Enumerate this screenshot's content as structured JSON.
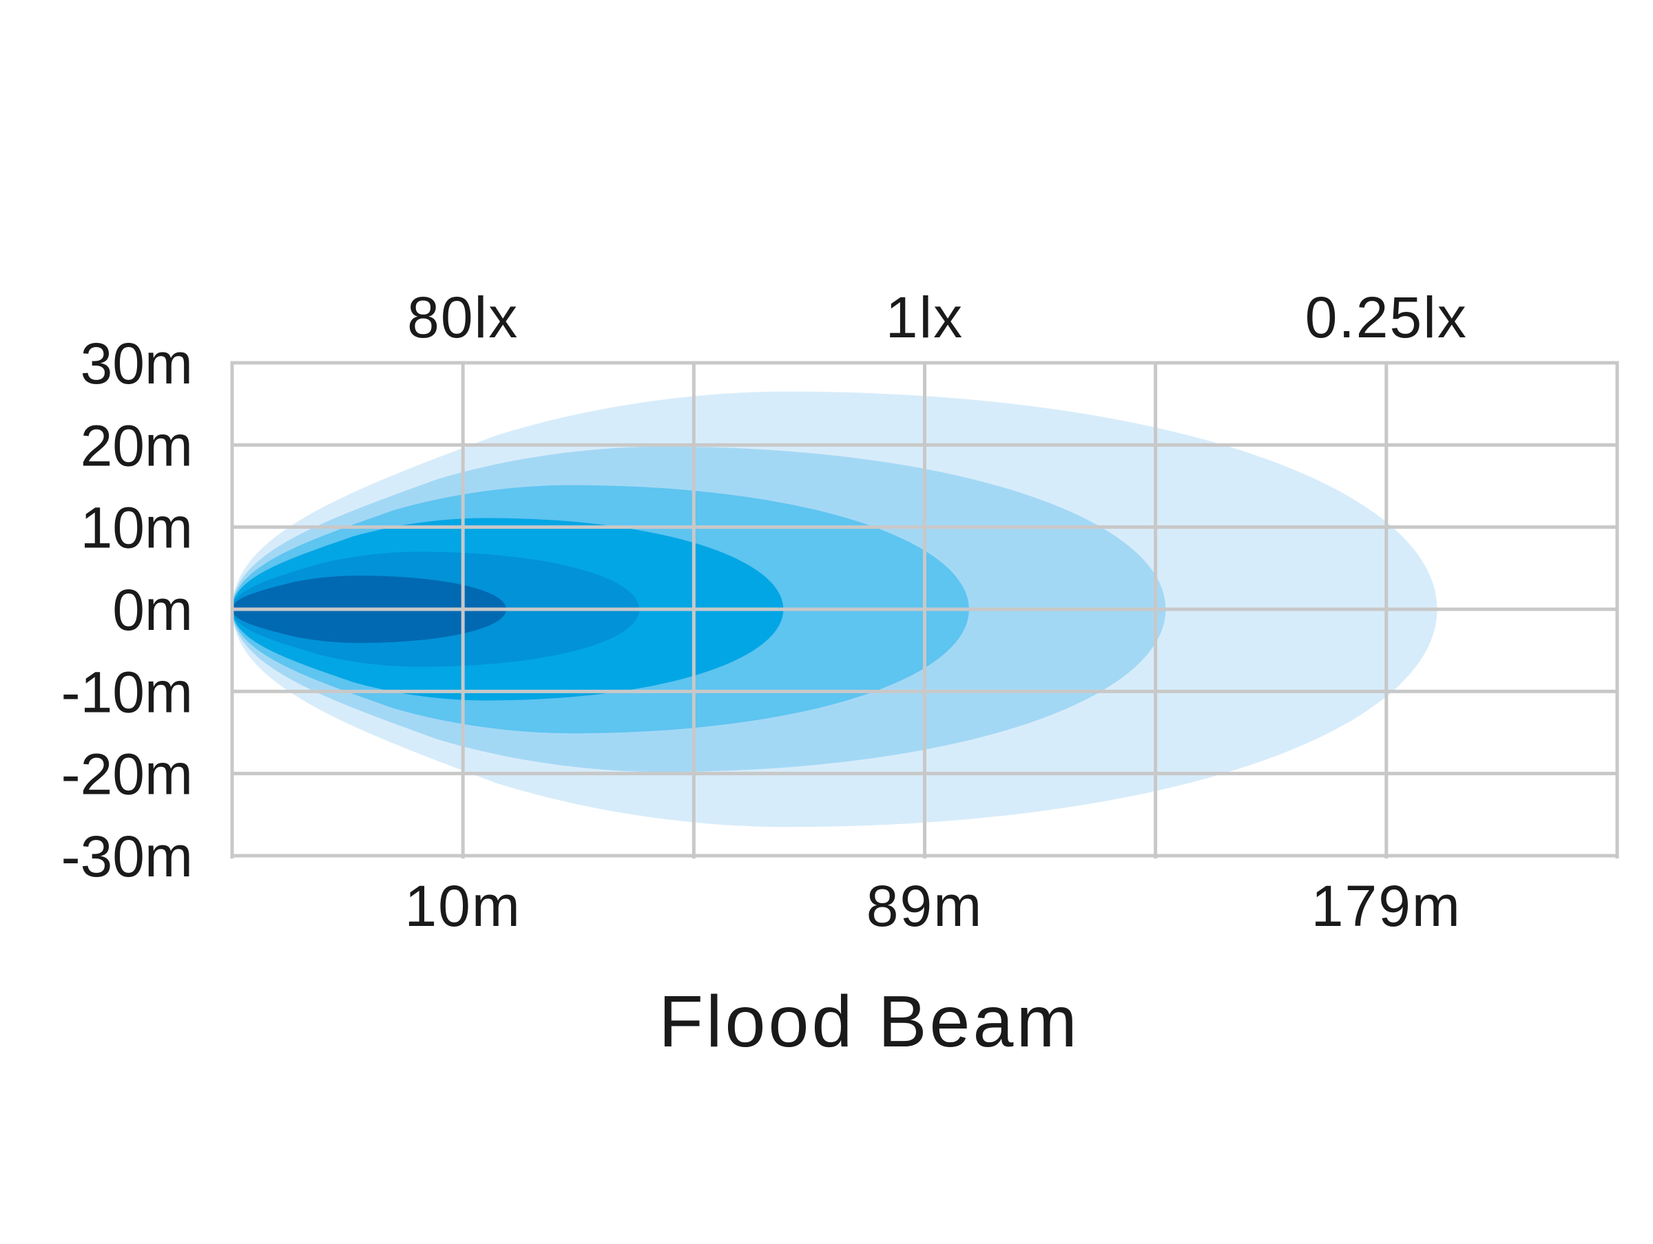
{
  "chart_data": {
    "type": "area",
    "title": "Flood Beam",
    "xlabel": "",
    "ylabel": "",
    "y_ticks": [
      "30m",
      "20m",
      "10m",
      "0m",
      "-10m",
      "-20m",
      "-30m"
    ],
    "y_tick_values": [
      30,
      20,
      10,
      0,
      -10,
      -20,
      -30
    ],
    "ylim": [
      -30,
      30
    ],
    "x_tick_labels": [
      "10m",
      "89m",
      "179m"
    ],
    "top_labels": [
      "80lx",
      "1lx",
      "0.25lx"
    ],
    "grid": true,
    "grid_columns": 6,
    "colors": {
      "grid": "#c8c8c8",
      "background": "#ffffff",
      "text": "#1a1a1a"
    },
    "series": [
      {
        "reach_fraction": 0.87,
        "half_width_m": 26.5,
        "color": "#d7ecfa"
      },
      {
        "reach_fraction": 0.674,
        "half_width_m": 19.8,
        "color": "#a3d8f5"
      },
      {
        "reach_fraction": 0.532,
        "half_width_m": 15.1,
        "color": "#5ec4f0"
      },
      {
        "reach_fraction": 0.398,
        "half_width_m": 11.1,
        "color": "#03a6e4"
      },
      {
        "reach_fraction": 0.294,
        "half_width_m": 7.0,
        "color": "#0292d7"
      },
      {
        "reach_fraction": 0.198,
        "half_width_m": 4.1,
        "color": "#0169b2"
      }
    ]
  }
}
